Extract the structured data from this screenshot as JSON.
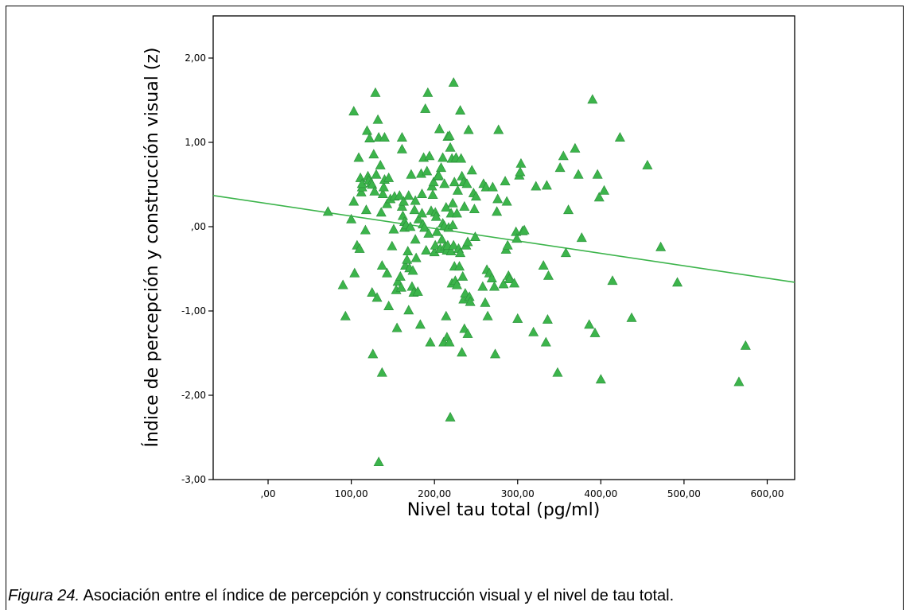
{
  "caption": {
    "figure_label": "Figura 24.",
    "text": " Asociación entre el índice de percepción y construcción visual y el nivel de tau total."
  },
  "chart_data": {
    "type": "scatter",
    "xlabel": "Nivel tau total (pg/ml)",
    "ylabel": "Índice de percepción y construcción visual (z)",
    "xlim": [
      -66,
      633
    ],
    "ylim": [
      -3.0,
      2.5
    ],
    "x_ticks": [
      0,
      100,
      200,
      300,
      400,
      500,
      600
    ],
    "x_tick_labels": [
      ",00",
      "100,00",
      "200,00",
      "300,00",
      "400,00",
      "500,00",
      "600,00"
    ],
    "y_ticks": [
      -3,
      -2,
      -1,
      0,
      1,
      2
    ],
    "y_tick_labels": [
      "-3,00",
      "-2,00",
      "-1,00",
      ",00",
      "1,00",
      "2,00"
    ],
    "marker": "triangle",
    "color": "#3cb44b",
    "fit_line": {
      "type": "linear",
      "x": [
        -66,
        633
      ],
      "y": [
        0.37,
        -0.66
      ],
      "color": "#3cb44b"
    },
    "points": [
      [
        72,
        0.18
      ],
      [
        90,
        -0.69
      ],
      [
        93,
        -1.06
      ],
      [
        100,
        0.09
      ],
      [
        103,
        1.37
      ],
      [
        103,
        0.3
      ],
      [
        104,
        -0.55
      ],
      [
        107,
        -0.22
      ],
      [
        109,
        0.82
      ],
      [
        110,
        -0.26
      ],
      [
        111,
        0.58
      ],
      [
        112,
        0.41
      ],
      [
        113,
        0.47
      ],
      [
        113,
        0.51
      ],
      [
        117,
        -0.04
      ],
      [
        118,
        0.2
      ],
      [
        119,
        1.14
      ],
      [
        120,
        0.6
      ],
      [
        121,
        0.55
      ],
      [
        122,
        1.05
      ],
      [
        124,
        0.52
      ],
      [
        125,
        0.5
      ],
      [
        125,
        -0.78
      ],
      [
        126,
        -1.51
      ],
      [
        127,
        0.86
      ],
      [
        128,
        0.42
      ],
      [
        129,
        1.59
      ],
      [
        130,
        0.62
      ],
      [
        131,
        -0.84
      ],
      [
        132,
        1.27
      ],
      [
        133,
        1.06
      ],
      [
        133,
        -2.79
      ],
      [
        135,
        0.73
      ],
      [
        136,
        0.17
      ],
      [
        137,
        -1.73
      ],
      [
        137,
        -0.46
      ],
      [
        138,
        0.39
      ],
      [
        139,
        0.47
      ],
      [
        140,
        1.06
      ],
      [
        140,
        0.56
      ],
      [
        143,
        -0.55
      ],
      [
        143,
        0.27
      ],
      [
        145,
        0.58
      ],
      [
        145,
        -0.94
      ],
      [
        147,
        0.33
      ],
      [
        149,
        -0.23
      ],
      [
        151,
        -0.03
      ],
      [
        152,
        0.36
      ],
      [
        154,
        -0.75
      ],
      [
        155,
        -1.2
      ],
      [
        156,
        -0.65
      ],
      [
        158,
        0.37
      ],
      [
        159,
        -0.59
      ],
      [
        160,
        -0.72
      ],
      [
        161,
        1.06
      ],
      [
        161,
        0.92
      ],
      [
        161,
        0.24
      ],
      [
        162,
        0.13
      ],
      [
        163,
        0.3
      ],
      [
        164,
        0.06
      ],
      [
        164,
        -0.01
      ],
      [
        165,
        -0.46
      ],
      [
        166,
        0.02
      ],
      [
        167,
        -0.39
      ],
      [
        168,
        -0.29
      ],
      [
        169,
        0.37
      ],
      [
        169,
        -0.99
      ],
      [
        170,
        -0.49
      ],
      [
        171,
        0.0
      ],
      [
        172,
        0.62
      ],
      [
        173,
        -0.71
      ],
      [
        174,
        -0.52
      ],
      [
        175,
        -0.78
      ],
      [
        176,
        0.2
      ],
      [
        177,
        0.31
      ],
      [
        177,
        -0.15
      ],
      [
        178,
        -0.37
      ],
      [
        180,
        -0.77
      ],
      [
        181,
        0.09
      ],
      [
        183,
        -1.16
      ],
      [
        184,
        0.63
      ],
      [
        185,
        0.39
      ],
      [
        185,
        0.16
      ],
      [
        186,
        0.03
      ],
      [
        187,
        0.82
      ],
      [
        188,
        -0.01
      ],
      [
        189,
        1.4
      ],
      [
        190,
        -0.28
      ],
      [
        191,
        0.66
      ],
      [
        192,
        1.59
      ],
      [
        193,
        -0.08
      ],
      [
        194,
        0.84
      ],
      [
        195,
        -1.37
      ],
      [
        196,
        0.19
      ],
      [
        197,
        0.48
      ],
      [
        198,
        0.38
      ],
      [
        199,
        0.53
      ],
      [
        200,
        -0.3
      ],
      [
        201,
        0.17
      ],
      [
        201,
        -0.22
      ],
      [
        202,
        0.12
      ],
      [
        203,
        -0.06
      ],
      [
        204,
        0.6
      ],
      [
        205,
        0.61
      ],
      [
        206,
        1.16
      ],
      [
        207,
        -0.26
      ],
      [
        208,
        0.7
      ],
      [
        209,
        -0.15
      ],
      [
        210,
        0.82
      ],
      [
        210,
        0.04
      ],
      [
        211,
        -1.37
      ],
      [
        212,
        0.51
      ],
      [
        212,
        0.01
      ],
      [
        213,
        -0.23
      ],
      [
        214,
        0.23
      ],
      [
        214,
        -1.06
      ],
      [
        215,
        -0.28
      ],
      [
        215,
        -1.31
      ],
      [
        216,
        1.07
      ],
      [
        216,
        -0.22
      ],
      [
        217,
        -0.01
      ],
      [
        218,
        1.08
      ],
      [
        218,
        -1.37
      ],
      [
        219,
        0.94
      ],
      [
        219,
        -2.26
      ],
      [
        220,
        0.16
      ],
      [
        220,
        -0.29
      ],
      [
        221,
        0.81
      ],
      [
        221,
        -0.67
      ],
      [
        222,
        0.28
      ],
      [
        222,
        0.02
      ],
      [
        223,
        1.71
      ],
      [
        223,
        -0.22
      ],
      [
        224,
        0.53
      ],
      [
        224,
        -0.47
      ],
      [
        225,
        -0.64
      ],
      [
        226,
        0.82
      ],
      [
        227,
        0.16
      ],
      [
        227,
        -0.69
      ],
      [
        228,
        0.43
      ],
      [
        229,
        -0.26
      ],
      [
        230,
        -0.47
      ],
      [
        231,
        1.38
      ],
      [
        231,
        -0.31
      ],
      [
        232,
        0.81
      ],
      [
        233,
        0.6
      ],
      [
        233,
        -1.49
      ],
      [
        234,
        -0.59
      ],
      [
        235,
        0.53
      ],
      [
        235,
        -0.86
      ],
      [
        236,
        0.24
      ],
      [
        236,
        -1.21
      ],
      [
        237,
        -0.79
      ],
      [
        238,
        -0.22
      ],
      [
        239,
        0.51
      ],
      [
        240,
        -0.18
      ],
      [
        240,
        -1.27
      ],
      [
        241,
        1.15
      ],
      [
        242,
        -0.83
      ],
      [
        243,
        -0.89
      ],
      [
        245,
        0.67
      ],
      [
        247,
        0.4
      ],
      [
        248,
        0.21
      ],
      [
        249,
        -0.12
      ],
      [
        250,
        0.36
      ],
      [
        258,
        -0.71
      ],
      [
        259,
        0.51
      ],
      [
        261,
        -0.9
      ],
      [
        262,
        0.47
      ],
      [
        263,
        -0.51
      ],
      [
        264,
        -1.06
      ],
      [
        266,
        -0.55
      ],
      [
        269,
        -0.61
      ],
      [
        270,
        0.47
      ],
      [
        272,
        -0.71
      ],
      [
        273,
        -1.51
      ],
      [
        275,
        0.18
      ],
      [
        276,
        0.33
      ],
      [
        277,
        1.15
      ],
      [
        283,
        -0.68
      ],
      [
        285,
        0.54
      ],
      [
        286,
        -0.27
      ],
      [
        287,
        0.3
      ],
      [
        288,
        -0.22
      ],
      [
        289,
        -0.58
      ],
      [
        290,
        -0.62
      ],
      [
        296,
        -0.67
      ],
      [
        298,
        -0.06
      ],
      [
        299,
        -0.14
      ],
      [
        300,
        -1.09
      ],
      [
        302,
        0.61
      ],
      [
        303,
        0.65
      ],
      [
        304,
        0.75
      ],
      [
        306,
        -0.05
      ],
      [
        308,
        -0.04
      ],
      [
        319,
        -1.25
      ],
      [
        322,
        0.48
      ],
      [
        331,
        -0.46
      ],
      [
        334,
        -1.37
      ],
      [
        335,
        0.49
      ],
      [
        336,
        -1.1
      ],
      [
        337,
        -0.58
      ],
      [
        348,
        -1.73
      ],
      [
        351,
        0.7
      ],
      [
        355,
        0.84
      ],
      [
        358,
        -0.31
      ],
      [
        361,
        0.2
      ],
      [
        369,
        0.93
      ],
      [
        373,
        0.62
      ],
      [
        377,
        -0.13
      ],
      [
        386,
        -1.16
      ],
      [
        390,
        1.51
      ],
      [
        393,
        -1.26
      ],
      [
        396,
        0.62
      ],
      [
        398,
        0.35
      ],
      [
        400,
        -1.81
      ],
      [
        404,
        0.43
      ],
      [
        414,
        -0.64
      ],
      [
        423,
        1.06
      ],
      [
        437,
        -1.08
      ],
      [
        456,
        0.73
      ],
      [
        472,
        -0.24
      ],
      [
        492,
        -0.66
      ],
      [
        566,
        -1.84
      ],
      [
        574,
        -1.41
      ]
    ]
  }
}
